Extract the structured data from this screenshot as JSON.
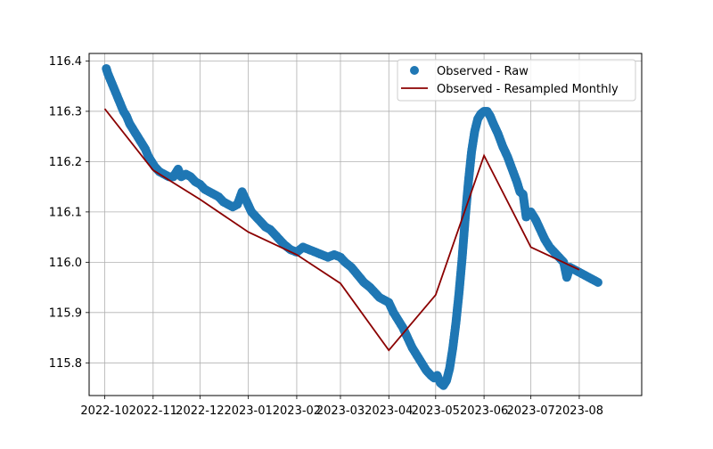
{
  "chart_data": {
    "type": "scatter",
    "title": "",
    "xlabel": "",
    "ylabel": "",
    "x_axis_type": "date",
    "xlim": [
      "2022-09-21",
      "2023-09-10"
    ],
    "ylim": [
      115.735,
      116.415
    ],
    "grid": true,
    "legend_position": "upper right",
    "x_ticks": [
      "2022-10-01",
      "2022-11-01",
      "2022-12-01",
      "2023-01-01",
      "2023-02-01",
      "2023-03-01",
      "2023-04-01",
      "2023-05-01",
      "2023-06-01",
      "2023-07-01",
      "2023-08-01"
    ],
    "x_tick_labels": [
      "2022-10",
      "2022-11",
      "2022-12",
      "2023-01",
      "2023-02",
      "2023-03",
      "2023-04",
      "2023-05",
      "2023-06",
      "2023-07",
      "2023-08"
    ],
    "y_ticks": [
      115.8,
      115.9,
      116.0,
      116.1,
      116.2,
      116.3,
      116.4
    ],
    "y_tick_labels": [
      "115.8",
      "115.9",
      "116.0",
      "116.1",
      "116.2",
      "116.3",
      "116.4"
    ],
    "series": [
      {
        "name": "Observed - Raw",
        "kind": "scatter",
        "color": "#1f77b4",
        "points": [
          [
            "2022-10-02",
            116.385
          ],
          [
            "2022-10-03",
            116.375
          ],
          [
            "2022-10-05",
            116.36
          ],
          [
            "2022-10-07",
            116.345
          ],
          [
            "2022-10-09",
            116.33
          ],
          [
            "2022-10-11",
            116.315
          ],
          [
            "2022-10-13",
            116.3
          ],
          [
            "2022-10-15",
            116.29
          ],
          [
            "2022-10-17",
            116.275
          ],
          [
            "2022-10-19",
            116.265
          ],
          [
            "2022-10-21",
            116.255
          ],
          [
            "2022-10-23",
            116.245
          ],
          [
            "2022-10-25",
            116.235
          ],
          [
            "2022-10-27",
            116.225
          ],
          [
            "2022-10-29",
            116.21
          ],
          [
            "2022-10-31",
            116.2
          ],
          [
            "2022-11-02",
            116.19
          ],
          [
            "2022-11-05",
            116.18
          ],
          [
            "2022-11-08",
            116.175
          ],
          [
            "2022-11-11",
            116.17
          ],
          [
            "2022-11-14",
            116.17
          ],
          [
            "2022-11-17",
            116.185
          ],
          [
            "2022-11-19",
            116.17
          ],
          [
            "2022-11-22",
            116.175
          ],
          [
            "2022-11-25",
            116.17
          ],
          [
            "2022-11-28",
            116.16
          ],
          [
            "2022-12-01",
            116.155
          ],
          [
            "2022-12-04",
            116.145
          ],
          [
            "2022-12-07",
            116.14
          ],
          [
            "2022-12-10",
            116.135
          ],
          [
            "2022-12-13",
            116.13
          ],
          [
            "2022-12-16",
            116.12
          ],
          [
            "2022-12-19",
            116.115
          ],
          [
            "2022-12-22",
            116.11
          ],
          [
            "2022-12-25",
            116.115
          ],
          [
            "2022-12-28",
            116.14
          ],
          [
            "2022-12-31",
            116.12
          ],
          [
            "2023-01-03",
            116.1
          ],
          [
            "2023-01-06",
            116.09
          ],
          [
            "2023-01-09",
            116.08
          ],
          [
            "2023-01-12",
            116.07
          ],
          [
            "2023-01-15",
            116.065
          ],
          [
            "2023-01-18",
            116.055
          ],
          [
            "2023-01-21",
            116.045
          ],
          [
            "2023-01-24",
            116.035
          ],
          [
            "2023-01-28",
            116.025
          ],
          [
            "2023-02-01",
            116.02
          ],
          [
            "2023-02-05",
            116.03
          ],
          [
            "2023-02-09",
            116.025
          ],
          [
            "2023-02-13",
            116.02
          ],
          [
            "2023-02-17",
            116.015
          ],
          [
            "2023-02-21",
            116.01
          ],
          [
            "2023-02-25",
            116.015
          ],
          [
            "2023-03-01",
            116.01
          ],
          [
            "2023-03-04",
            116.0
          ],
          [
            "2023-03-08",
            115.99
          ],
          [
            "2023-03-12",
            115.975
          ],
          [
            "2023-03-16",
            115.96
          ],
          [
            "2023-03-20",
            115.95
          ],
          [
            "2023-03-23",
            115.94
          ],
          [
            "2023-03-26",
            115.93
          ],
          [
            "2023-03-29",
            115.925
          ],
          [
            "2023-04-01",
            115.92
          ],
          [
            "2023-04-04",
            115.9
          ],
          [
            "2023-04-07",
            115.885
          ],
          [
            "2023-04-10",
            115.87
          ],
          [
            "2023-04-13",
            115.85
          ],
          [
            "2023-04-16",
            115.83
          ],
          [
            "2023-04-19",
            115.815
          ],
          [
            "2023-04-22",
            115.8
          ],
          [
            "2023-04-25",
            115.785
          ],
          [
            "2023-04-28",
            115.775
          ],
          [
            "2023-04-30",
            115.77
          ],
          [
            "2023-05-02",
            115.775
          ],
          [
            "2023-05-04",
            115.76
          ],
          [
            "2023-05-06",
            115.755
          ],
          [
            "2023-05-08",
            115.765
          ],
          [
            "2023-05-10",
            115.79
          ],
          [
            "2023-05-12",
            115.83
          ],
          [
            "2023-05-14",
            115.88
          ],
          [
            "2023-05-16",
            115.94
          ],
          [
            "2023-05-18",
            116.01
          ],
          [
            "2023-05-20",
            116.09
          ],
          [
            "2023-05-22",
            116.16
          ],
          [
            "2023-05-24",
            116.22
          ],
          [
            "2023-05-26",
            116.26
          ],
          [
            "2023-05-28",
            116.285
          ],
          [
            "2023-05-30",
            116.295
          ],
          [
            "2023-06-01",
            116.3
          ],
          [
            "2023-06-03",
            116.3
          ],
          [
            "2023-06-05",
            116.29
          ],
          [
            "2023-06-07",
            116.275
          ],
          [
            "2023-06-10",
            116.255
          ],
          [
            "2023-06-13",
            116.23
          ],
          [
            "2023-06-16",
            116.21
          ],
          [
            "2023-06-19",
            116.185
          ],
          [
            "2023-06-22",
            116.16
          ],
          [
            "2023-06-24",
            116.14
          ],
          [
            "2023-06-26",
            116.135
          ],
          [
            "2023-06-28",
            116.09
          ],
          [
            "2023-07-01",
            116.1
          ],
          [
            "2023-07-04",
            116.085
          ],
          [
            "2023-07-07",
            116.065
          ],
          [
            "2023-07-10",
            116.045
          ],
          [
            "2023-07-13",
            116.03
          ],
          [
            "2023-07-16",
            116.02
          ],
          [
            "2023-07-19",
            116.01
          ],
          [
            "2023-07-22",
            116.0
          ],
          [
            "2023-07-24",
            115.97
          ],
          [
            "2023-07-26",
            115.99
          ],
          [
            "2023-07-29",
            115.985
          ],
          [
            "2023-08-01",
            115.98
          ],
          [
            "2023-08-04",
            115.975
          ],
          [
            "2023-08-07",
            115.97
          ],
          [
            "2023-08-10",
            115.965
          ],
          [
            "2023-08-13",
            115.96
          ]
        ]
      },
      {
        "name": "Observed - Resampled Monthly",
        "kind": "line",
        "color": "#8b0000",
        "points": [
          [
            "2022-10-01",
            116.305
          ],
          [
            "2022-11-01",
            116.183
          ],
          [
            "2022-12-01",
            116.125
          ],
          [
            "2023-01-01",
            116.06
          ],
          [
            "2023-02-01",
            116.015
          ],
          [
            "2023-03-01",
            115.958
          ],
          [
            "2023-04-01",
            115.825
          ],
          [
            "2023-05-01",
            115.935
          ],
          [
            "2023-06-01",
            116.212
          ],
          [
            "2023-07-01",
            116.03
          ],
          [
            "2023-08-01",
            115.985
          ]
        ]
      }
    ]
  }
}
